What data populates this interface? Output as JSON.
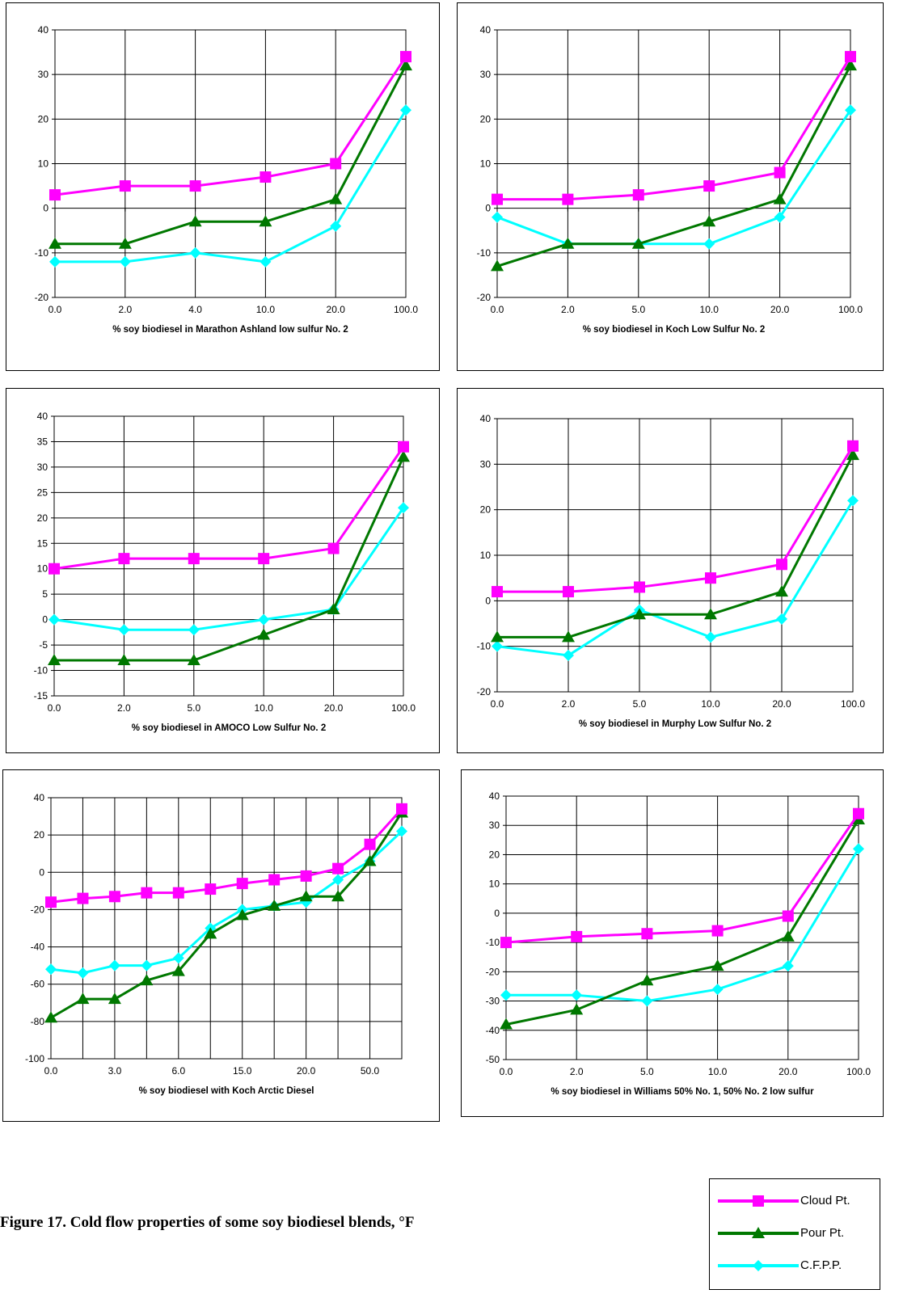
{
  "figure": {
    "caption": "Figure 17. Cold flow properties of some soy biodiesel blends, °F"
  },
  "legend": {
    "entries": [
      {
        "name": "Cloud Pt.",
        "color": "#ff00ff",
        "marker": "square"
      },
      {
        "name": "Pour Pt.",
        "color": "#007800",
        "marker": "triangle"
      },
      {
        "name": "C.F.P.P.",
        "color": "#00ffff",
        "marker": "diamond"
      }
    ]
  },
  "chart_data": [
    {
      "type": "line",
      "xlabel": "% soy biodiesel in Marathon Ashland low sulfur No. 2",
      "ylabel": "",
      "categories": [
        "0.0",
        "2.0",
        "4.0",
        "10.0",
        "20.0",
        "100.0"
      ],
      "ylim": [
        -20,
        40
      ],
      "ytick_step": 10,
      "grid": true,
      "series": [
        {
          "name": "Cloud Pt.",
          "values": [
            3,
            5,
            5,
            7,
            10,
            34
          ]
        },
        {
          "name": "Pour Pt.",
          "values": [
            -8,
            -8,
            -3,
            -3,
            2,
            32
          ]
        },
        {
          "name": "C.F.P.P.",
          "values": [
            -12,
            -12,
            -10,
            -12,
            -4,
            22
          ]
        }
      ]
    },
    {
      "type": "line",
      "xlabel": "% soy biodiesel in Koch Low Sulfur No. 2",
      "ylabel": "",
      "categories": [
        "0.0",
        "2.0",
        "5.0",
        "10.0",
        "20.0",
        "100.0"
      ],
      "ylim": [
        -20,
        40
      ],
      "ytick_step": 10,
      "grid": true,
      "series": [
        {
          "name": "Cloud Pt.",
          "values": [
            2,
            2,
            3,
            5,
            8,
            34
          ]
        },
        {
          "name": "Pour Pt.",
          "values": [
            -13,
            -8,
            -8,
            -3,
            2,
            32
          ]
        },
        {
          "name": "C.F.P.P.",
          "values": [
            -2,
            -8,
            -8,
            -8,
            -2,
            22
          ]
        }
      ]
    },
    {
      "type": "line",
      "xlabel": "% soy biodiesel in AMOCO Low Sulfur No. 2",
      "ylabel": "",
      "categories": [
        "0.0",
        "2.0",
        "5.0",
        "10.0",
        "20.0",
        "100.0"
      ],
      "ylim": [
        -15,
        40
      ],
      "ytick_step": 5,
      "grid": true,
      "series": [
        {
          "name": "Cloud Pt.",
          "values": [
            10,
            12,
            12,
            12,
            14,
            34
          ]
        },
        {
          "name": "Pour Pt.",
          "values": [
            -8,
            -8,
            -8,
            -3,
            2,
            32
          ]
        },
        {
          "name": "C.F.P.P.",
          "values": [
            0,
            -2,
            -2,
            0,
            2,
            22
          ]
        }
      ]
    },
    {
      "type": "line",
      "xlabel": "% soy biodiesel in Murphy Low Sulfur No. 2",
      "ylabel": "",
      "categories": [
        "0.0",
        "2.0",
        "5.0",
        "10.0",
        "20.0",
        "100.0"
      ],
      "ylim": [
        -20,
        40
      ],
      "ytick_step": 10,
      "grid": true,
      "series": [
        {
          "name": "Cloud Pt.",
          "values": [
            2,
            2,
            3,
            5,
            8,
            34
          ]
        },
        {
          "name": "Pour Pt.",
          "values": [
            -8,
            -8,
            -3,
            -3,
            2,
            32
          ]
        },
        {
          "name": "C.F.P.P.",
          "values": [
            -10,
            -12,
            -2,
            -8,
            -4,
            22
          ]
        }
      ]
    },
    {
      "type": "line",
      "xlabel": "% soy biodiesel with Koch Arctic Diesel",
      "ylabel": "",
      "categories": [
        "0.0",
        "",
        "3.0",
        "",
        "6.0",
        "",
        "15.0",
        "",
        "20.0",
        "",
        "50.0",
        ""
      ],
      "ylim": [
        -100,
        40
      ],
      "ytick_step": 20,
      "grid": true,
      "series": [
        {
          "name": "Cloud Pt.",
          "values": [
            -16,
            -14,
            -13,
            -11,
            -11,
            -9,
            -6,
            -4,
            -2,
            2,
            15,
            34
          ]
        },
        {
          "name": "Pour Pt.",
          "values": [
            -78,
            -68,
            -68,
            -58,
            -53,
            -33,
            -23,
            -18,
            -13,
            -13,
            6,
            32
          ]
        },
        {
          "name": "C.F.P.P.",
          "values": [
            -52,
            -54,
            -50,
            -50,
            -46,
            -30,
            -20,
            -18,
            -16,
            -4,
            6,
            22
          ]
        }
      ]
    },
    {
      "type": "line",
      "xlabel": "% soy biodiesel in Williams 50% No. 1, 50% No. 2 low sulfur",
      "ylabel": "",
      "categories": [
        "0.0",
        "2.0",
        "5.0",
        "10.0",
        "20.0",
        "100.0"
      ],
      "ylim": [
        -50,
        40
      ],
      "ytick_step": 10,
      "grid": true,
      "series": [
        {
          "name": "Cloud Pt.",
          "values": [
            -10,
            -8,
            -7,
            -6,
            -1,
            34
          ]
        },
        {
          "name": "Pour Pt.",
          "values": [
            -38,
            -33,
            -23,
            -18,
            -8,
            32
          ]
        },
        {
          "name": "C.F.P.P.",
          "values": [
            -28,
            -28,
            -30,
            -26,
            -18,
            22
          ]
        }
      ]
    }
  ]
}
